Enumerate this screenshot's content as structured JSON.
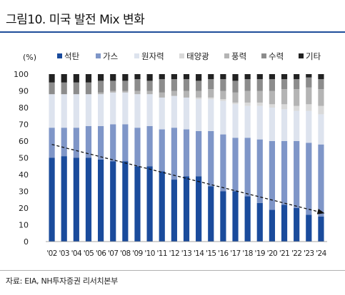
{
  "header": {
    "title": "그림10. 미국 발전 Mix 변화"
  },
  "footer": {
    "source": "자료: EIA, NH투자증권 리서치본부"
  },
  "chart_data": {
    "type": "bar",
    "stacked": true,
    "percent": true,
    "ylabel": "(%)",
    "ylim": [
      0,
      100
    ],
    "yticks": [
      0,
      10,
      20,
      30,
      40,
      50,
      60,
      70,
      80,
      90,
      100
    ],
    "legend_position": "top",
    "categories": [
      "'02",
      "'03",
      "'04",
      "'05",
      "'06",
      "'07",
      "'08",
      "'09",
      "'10",
      "'11",
      "'12",
      "'13",
      "'14",
      "'15",
      "'16",
      "'17",
      "'18",
      "'19",
      "'20",
      "'21",
      "'22",
      "'23",
      "'24"
    ],
    "series": [
      {
        "name": "석탄",
        "color": "#1a4b9c",
        "values": [
          50,
          51,
          50,
          50,
          49,
          48,
          48,
          45,
          45,
          42,
          37,
          39,
          39,
          33,
          30,
          30,
          27,
          23,
          19,
          22,
          20,
          16,
          15
        ]
      },
      {
        "name": "가스",
        "color": "#7f96c8",
        "values": [
          18,
          17,
          18,
          19,
          20,
          22,
          22,
          23,
          24,
          25,
          31,
          28,
          27,
          33,
          34,
          32,
          35,
          38,
          41,
          38,
          40,
          43,
          43
        ]
      },
      {
        "name": "원자력",
        "color": "#dde3ee",
        "values": [
          20,
          20,
          20,
          19,
          19,
          19,
          19,
          20,
          19,
          19,
          19,
          19,
          19,
          19,
          20,
          20,
          19,
          20,
          20,
          19,
          18,
          19,
          18
        ]
      },
      {
        "name": "태양광",
        "color": "#d9d9d9",
        "values": [
          0,
          0,
          0,
          0,
          0,
          0,
          0,
          0,
          0,
          0,
          0,
          0,
          1,
          1,
          1,
          1,
          2,
          2,
          2,
          3,
          3,
          4,
          5
        ]
      },
      {
        "name": "풍력",
        "color": "#b4b4b4",
        "values": [
          0,
          0,
          0,
          0,
          1,
          1,
          1,
          2,
          2,
          3,
          3,
          4,
          4,
          5,
          5,
          6,
          7,
          7,
          8,
          9,
          10,
          10,
          10
        ]
      },
      {
        "name": "수력",
        "color": "#8c8c8c",
        "values": [
          7,
          7,
          7,
          7,
          7,
          6,
          6,
          7,
          6,
          8,
          7,
          7,
          6,
          6,
          7,
          7,
          7,
          7,
          7,
          6,
          6,
          6,
          6
        ]
      },
      {
        "name": "기타",
        "color": "#222222",
        "values": [
          5,
          5,
          5,
          5,
          4,
          4,
          4,
          3,
          4,
          3,
          3,
          3,
          4,
          3,
          3,
          4,
          3,
          3,
          3,
          3,
          3,
          2,
          3
        ]
      }
    ],
    "annotations": [
      {
        "type": "trend-arrow",
        "from": {
          "x": "'02",
          "y": 58
        },
        "to": {
          "x": "'24",
          "y": 17
        },
        "style": "dashed"
      }
    ]
  }
}
